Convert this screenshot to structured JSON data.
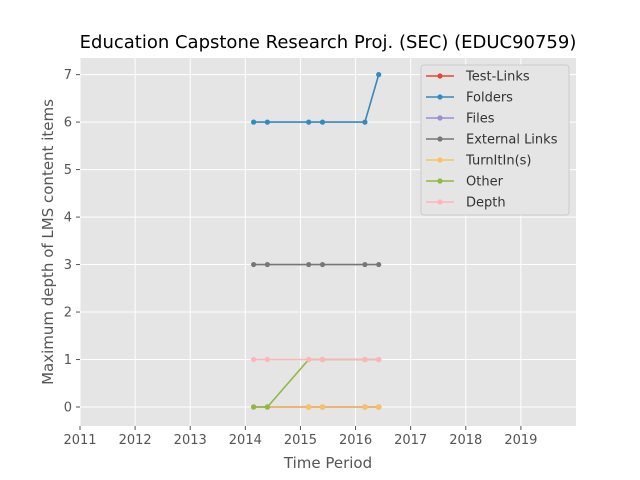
{
  "chart_data": {
    "type": "line",
    "title": "Education Capstone Research Proj. (SEC) (EDUC90759)",
    "xlabel": "Time Period",
    "ylabel": "Maximum depth of LMS content items",
    "xlim": [
      2011,
      2020
    ],
    "ylim": [
      -0.4,
      7.35
    ],
    "xticks": [
      2011,
      2012,
      2013,
      2014,
      2015,
      2016,
      2017,
      2018,
      2019
    ],
    "yticks": [
      0,
      1,
      2,
      3,
      4,
      5,
      6,
      7
    ],
    "grid": true,
    "legend_position": "top-right",
    "series": [
      {
        "name": "Test-Links",
        "color": "#e24a33",
        "x": [
          2014.15,
          2014.4,
          2015.15,
          2015.4,
          2016.17,
          2016.42
        ],
        "y": [
          0,
          0,
          0,
          0,
          0,
          0
        ]
      },
      {
        "name": "Folders",
        "color": "#348abd",
        "x": [
          2014.15,
          2014.4,
          2015.15,
          2015.4,
          2016.17,
          2016.42
        ],
        "y": [
          6,
          6,
          6,
          6,
          6,
          7
        ]
      },
      {
        "name": "Files",
        "color": "#988ed5",
        "x": [
          2014.15,
          2014.4,
          2015.15,
          2015.4,
          2016.17,
          2016.42
        ],
        "y": [
          0,
          0,
          0,
          0,
          0,
          0
        ]
      },
      {
        "name": "External Links",
        "color": "#777777",
        "x": [
          2014.15,
          2014.4,
          2015.15,
          2015.4,
          2016.17,
          2016.42
        ],
        "y": [
          3,
          3,
          3,
          3,
          3,
          3
        ]
      },
      {
        "name": "TurnItIn(s)",
        "color": "#fbc15e",
        "x": [
          2014.15,
          2014.4,
          2015.15,
          2015.4,
          2016.17,
          2016.42
        ],
        "y": [
          0,
          0,
          0,
          0,
          0,
          0
        ]
      },
      {
        "name": "Other",
        "color": "#8eba42",
        "x": [
          2014.15,
          2014.4,
          2015.15,
          2015.4,
          2016.17,
          2016.42
        ],
        "y": [
          0,
          0,
          1,
          1,
          1,
          1
        ]
      },
      {
        "name": "Depth",
        "color": "#ffb5b8",
        "x": [
          2014.15,
          2014.4,
          2015.15,
          2015.4,
          2016.17,
          2016.42
        ],
        "y": [
          1,
          1,
          1,
          1,
          1,
          1
        ]
      }
    ]
  }
}
